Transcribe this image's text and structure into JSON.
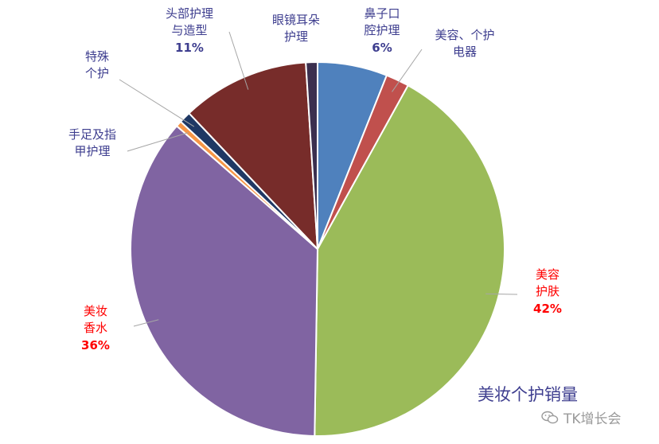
{
  "chart_data": {
    "type": "pie",
    "title": "美妆个护销量",
    "slices": [
      {
        "name_lines": [
          "鼻子口",
          "腔护理"
        ],
        "value": 6,
        "value_label": "6%",
        "color": "#4f81bd",
        "label_color": "#3e3e8f"
      },
      {
        "name_lines": [
          "美容、个护",
          "电器"
        ],
        "value": 2,
        "value_label": "",
        "color": "#c0504d",
        "label_color": "#3e3e8f"
      },
      {
        "name_lines": [
          "美容",
          "护肤"
        ],
        "value": 42,
        "value_label": "42%",
        "color": "#9bbb59",
        "label_color": "#ff0000"
      },
      {
        "name_lines": [
          "美妆",
          "香水"
        ],
        "value": 36,
        "value_label": "36%",
        "color": "#8064a2",
        "label_color": "#ff0000"
      },
      {
        "name_lines": [
          "手足及指",
          "甲护理"
        ],
        "value": 0.5,
        "value_label": "",
        "color": "#f79646",
        "label_color": "#3e3e8f"
      },
      {
        "name_lines": [
          "特殊",
          "个护"
        ],
        "value": 1,
        "value_label": "",
        "color": "#1f3864",
        "label_color": "#3e3e8f"
      },
      {
        "name_lines": [
          "头部护理",
          "与造型"
        ],
        "value": 11,
        "value_label": "11%",
        "color": "#772c2a",
        "label_color": "#3e3e8f"
      },
      {
        "name_lines": [
          "眼镜耳朵",
          "护理"
        ],
        "value": 1,
        "value_label": "",
        "color": "#3b2f4f",
        "label_color": "#3e3e8f"
      }
    ],
    "legend": "none"
  },
  "watermark": "TK增长会"
}
